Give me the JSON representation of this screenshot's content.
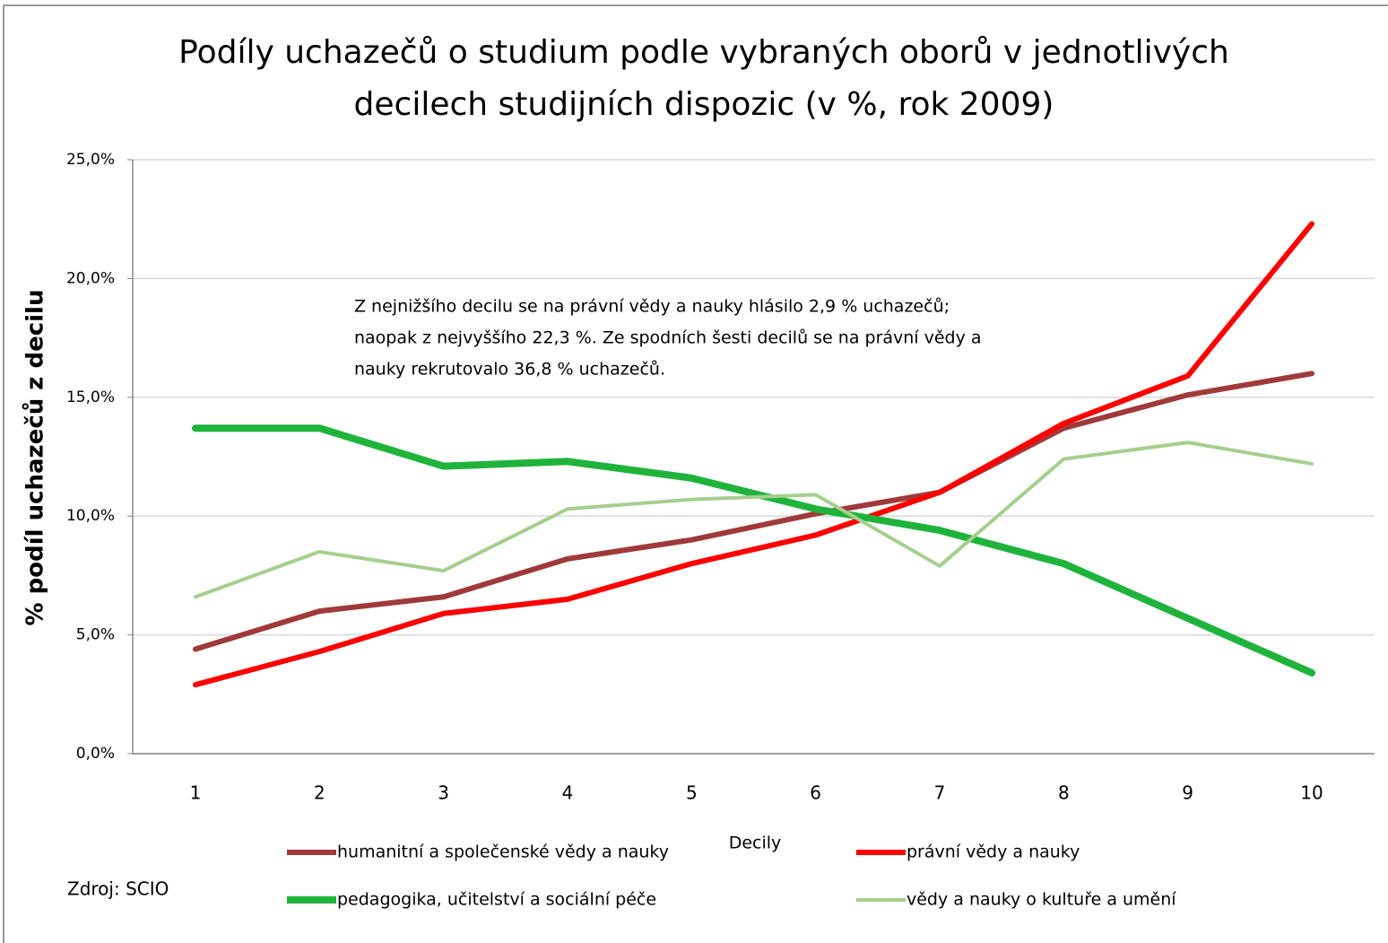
{
  "chart_data": {
    "type": "line",
    "title": [
      "Podíly uchazečů o studium podle vybraných oborů v jednotlivých",
      "decilech studijních dispozic (v %, rok 2009)"
    ],
    "annotation": [
      "Z nejnižšího decilu se na právní vědy a nauky hlásilo 2,9 % uchazečů;",
      "naopak z nejvyššího 22,3 %. Ze spodních šesti decilů se na právní vědy a",
      "nauky rekrutovalo 36,8 % uchazečů."
    ],
    "source": "Zdroj: SCIO",
    "x_label": "Decily",
    "y_label": "% podíl uchazečů z decilu",
    "categories": [
      "1",
      "2",
      "3",
      "4",
      "5",
      "6",
      "7",
      "8",
      "9",
      "10"
    ],
    "series": [
      {
        "name": "humanitní a společenské vědy a nauky",
        "color": "#a0393a",
        "width": 6,
        "values": [
          4.4,
          6.0,
          6.6,
          8.2,
          9.0,
          10.1,
          11.0,
          13.7,
          15.1,
          16.0
        ]
      },
      {
        "name": "právní vědy a nauky",
        "color": "#ff0000",
        "width": 6,
        "values": [
          2.9,
          4.3,
          5.9,
          6.5,
          8.0,
          9.2,
          11.0,
          13.9,
          15.9,
          22.3
        ]
      },
      {
        "name": "pedagogika, učitelství a sociální péče",
        "color": "#1fb33c",
        "width": 8,
        "values": [
          13.7,
          13.7,
          12.1,
          12.3,
          11.6,
          10.3,
          9.4,
          8.0,
          5.7,
          3.4
        ]
      },
      {
        "name": "vědy a nauky o kultuře a umění",
        "color": "#a6cf8e",
        "width": 4,
        "values": [
          6.6,
          8.5,
          7.7,
          10.3,
          10.7,
          10.9,
          7.9,
          12.4,
          13.1,
          12.2
        ]
      }
    ],
    "ylim": [
      0,
      25
    ],
    "yticks": [
      {
        "value": 0,
        "label": "0,0%"
      },
      {
        "value": 5,
        "label": "5,0%"
      },
      {
        "value": 10,
        "label": "10,0%"
      },
      {
        "value": 15,
        "label": "15,0%"
      },
      {
        "value": 20,
        "label": "20,0%"
      },
      {
        "value": 25,
        "label": "25,0%"
      }
    ],
    "grid": true
  }
}
